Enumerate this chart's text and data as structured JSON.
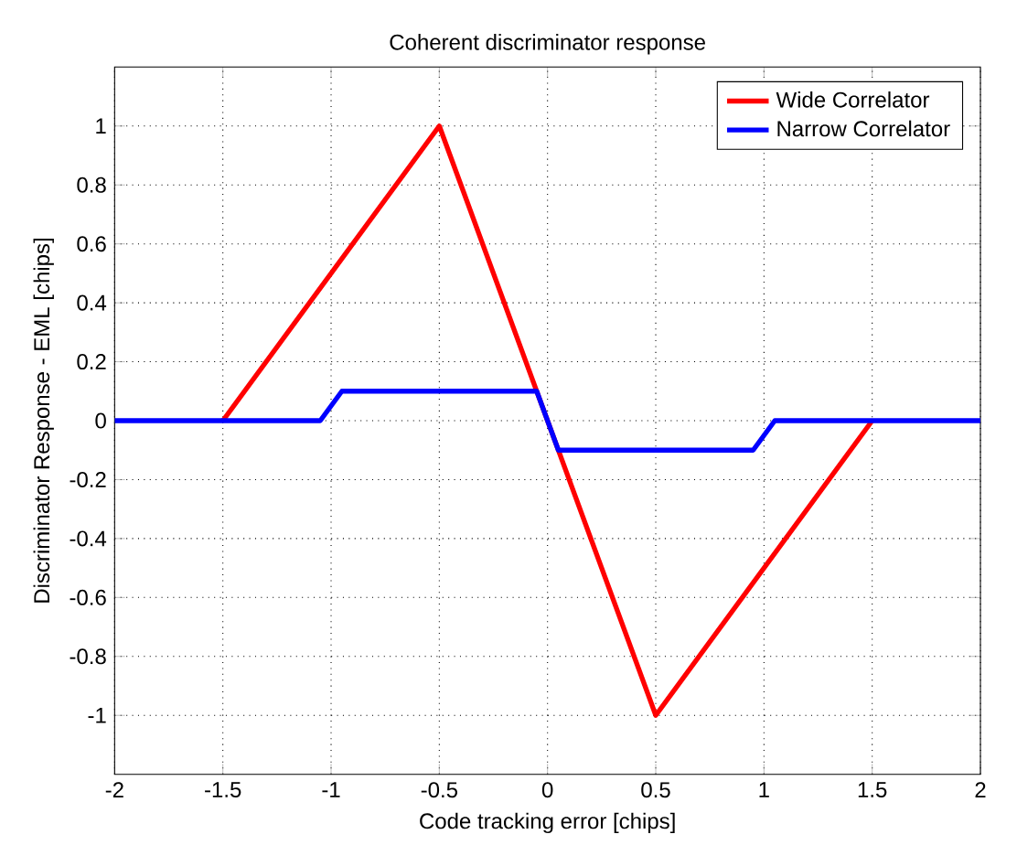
{
  "chart_data": {
    "type": "line",
    "title": "Coherent discriminator response",
    "xlabel": "Code tracking error [chips]",
    "ylabel": "Discriminator Response - EML [chips]",
    "series": [
      {
        "name": "Wide Correlator",
        "color": "#ff0000",
        "x": [
          -1.5,
          -0.5,
          0.5,
          1.5
        ],
        "values": [
          0,
          1,
          -1,
          0
        ]
      },
      {
        "name": "Narrow Correlator",
        "color": "#0000ff",
        "x": [
          -2,
          -1.05,
          -0.95,
          -0.05,
          0.05,
          0.95,
          1.05,
          2
        ],
        "values": [
          0,
          0,
          0.1,
          0.1,
          -0.1,
          -0.1,
          0,
          0
        ]
      }
    ],
    "xlim": [
      -2,
      2
    ],
    "ylim": [
      -1.2,
      1.2
    ],
    "xticks": [
      -2,
      -1.5,
      -1,
      -0.5,
      0,
      0.5,
      1,
      1.5,
      2
    ],
    "yticks": [
      -1,
      -0.8,
      -0.6,
      -0.4,
      -0.2,
      0,
      0.2,
      0.4,
      0.6,
      0.8,
      1
    ],
    "grid": true,
    "legend": "top right",
    "marker": "none",
    "line_style": "solid"
  }
}
